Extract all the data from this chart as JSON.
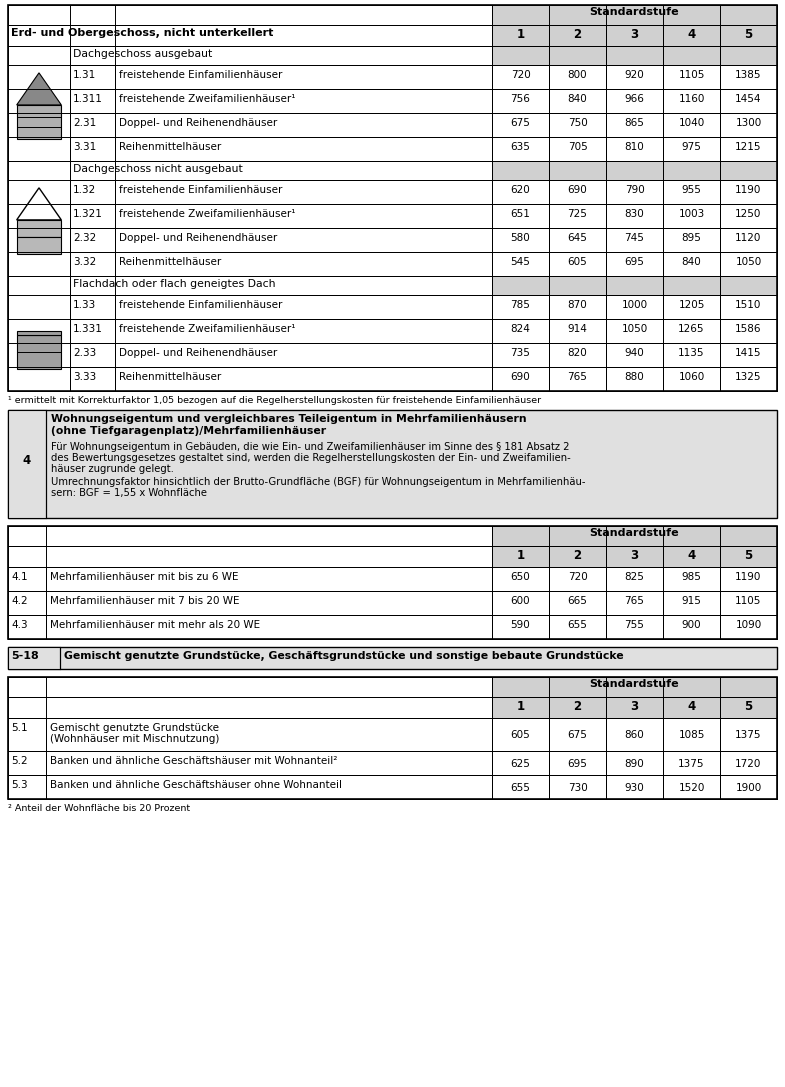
{
  "page_bg": "#ffffff",
  "header_bg": "#d0d0d0",
  "section_bg": "#e0e0e0",
  "table1_main_header": "Erd- und Obergeschoss, nicht unterkellert",
  "std_header": "Standardstufe",
  "std_cols": [
    "1",
    "2",
    "3",
    "4",
    "5"
  ],
  "group1_label": "Dachgeschoss ausgebaut",
  "group1_rows": [
    [
      "1.31",
      "freistehende Einfamilienhäuser",
      720,
      800,
      920,
      1105,
      1385
    ],
    [
      "1.311",
      "freistehende Zweifamilienhäuser¹",
      756,
      840,
      966,
      1160,
      1454
    ],
    [
      "2.31",
      "Doppel- und Reihenendhäuser",
      675,
      750,
      865,
      1040,
      1300
    ],
    [
      "3.31",
      "Reihenmittelhäuser",
      635,
      705,
      810,
      975,
      1215
    ]
  ],
  "group2_label": "Dachgeschoss nicht ausgebaut",
  "group2_rows": [
    [
      "1.32",
      "freistehende Einfamilienhäuser",
      620,
      690,
      790,
      955,
      1190
    ],
    [
      "1.321",
      "freistehende Zweifamilienhäuser¹",
      651,
      725,
      830,
      1003,
      1250
    ],
    [
      "2.32",
      "Doppel- und Reihenendhäuser",
      580,
      645,
      745,
      895,
      1120
    ],
    [
      "3.32",
      "Reihenmittelhäuser",
      545,
      605,
      695,
      840,
      1050
    ]
  ],
  "group3_label": "Flachdach oder flach geneigtes Dach",
  "group3_rows": [
    [
      "1.33",
      "freistehende Einfamilienhäuser",
      785,
      870,
      1000,
      1205,
      1510
    ],
    [
      "1.331",
      "freistehende Zweifamilienhäuser¹",
      824,
      914,
      1050,
      1265,
      1586
    ],
    [
      "2.33",
      "Doppel- und Reihenendhäuser",
      735,
      820,
      940,
      1135,
      1415
    ],
    [
      "3.33",
      "Reihenmittelhäuser",
      690,
      765,
      880,
      1060,
      1325
    ]
  ],
  "footnote1": "¹ ermittelt mit Korrekturfaktor 1,05 bezogen auf die Regelherstellungskosten für freistehende Einfamilienhäuser",
  "section4_num": "4",
  "section4_title_line1": "Wohnungseigentum und vergleichbares Teileigentum in Mehrfamilienhäusern",
  "section4_title_line2": "(ohne Tiefgaragenplatz)/Mehrfamilienhäuser",
  "section4_text1_line1": "Für Wohnungseigentum in Gebäuden, die wie Ein- und Zweifamilienhäuser im Sinne des § 181 Absatz 2",
  "section4_text1_line2": "des Bewertungsgesetzes gestaltet sind, werden die Regelherstellungskosten der Ein- und Zweifamilien-",
  "section4_text1_line3": "häuser zugrunde gelegt.",
  "section4_text2_line1": "Umrechnungsfaktor hinsichtlich der Brutto-Grundfläche (BGF) für Wohnungseigentum in Mehrfamilienhäu-",
  "section4_text2_line2": "sern: BGF = 1,55 x Wohnfläche",
  "table4_rows": [
    [
      "4.1",
      "Mehrfamilienhäuser mit bis zu 6 WE",
      650,
      720,
      825,
      985,
      1190
    ],
    [
      "4.2",
      "Mehrfamilienhäuser mit 7 bis 20 WE",
      600,
      665,
      765,
      915,
      1105
    ],
    [
      "4.3",
      "Mehrfamilienhäuser mit mehr als 20 WE",
      590,
      655,
      755,
      900,
      1090
    ]
  ],
  "section518_num": "5-18",
  "section518_title": "Gemischt genutzte Grundstücke, Geschäftsgrundstücke und sonstige bebaute Grundstücke",
  "table5_rows": [
    [
      "5.1",
      "Gemischt genutzte Grundstücke (Wohnhäuser mit Mischnutzung)",
      605,
      675,
      860,
      1085,
      1375
    ],
    [
      "5.2",
      "Banken und ähnliche Geschäftshäuser mit Wohnanteil²",
      625,
      695,
      890,
      1375,
      1720
    ],
    [
      "5.3",
      "Banken und ähnliche Geschäftshäuser ohne Wohnanteil",
      655,
      730,
      930,
      1520,
      1900
    ]
  ],
  "footnote2": "² Anteil der Wohnfläche bis 20 Prozent"
}
